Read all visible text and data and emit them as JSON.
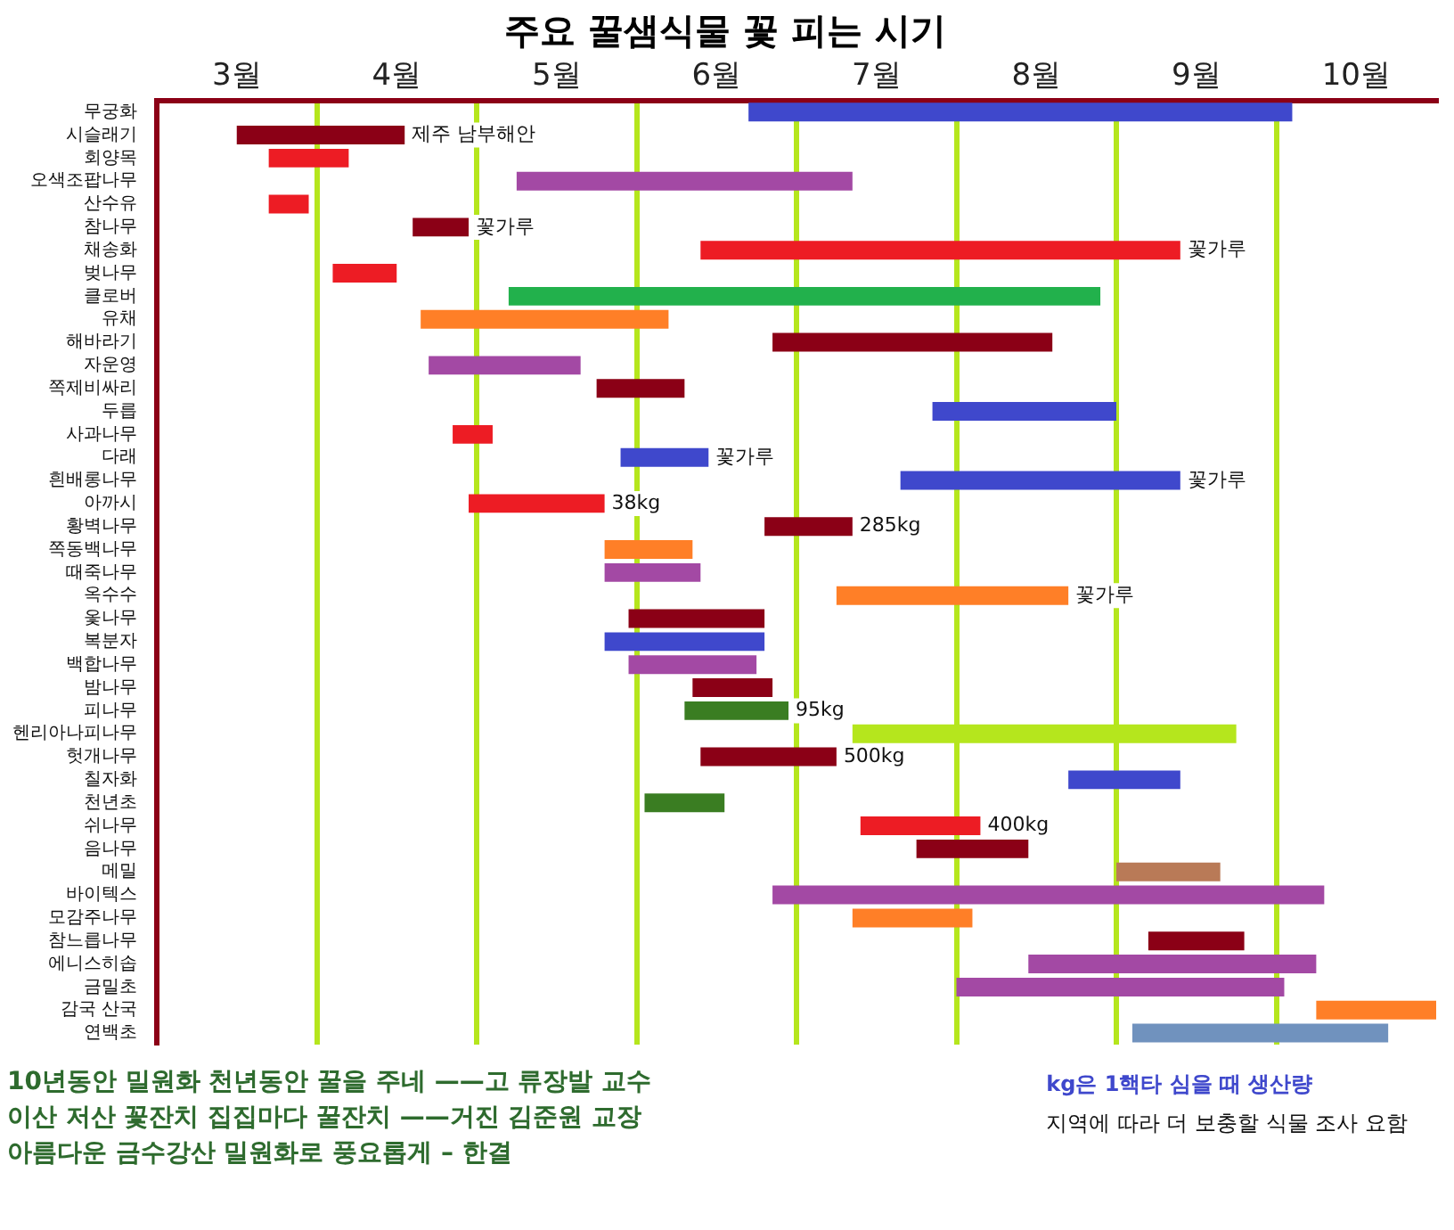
{
  "chart_data": {
    "type": "bar",
    "orientation": "horizontal",
    "title": "주요 꿀샘식물 꽃 피는 시기",
    "categories": [
      "무궁화",
      "시슬래기",
      "회양목",
      "오색조팝나무",
      "산수유",
      "참나무",
      "채송화",
      "벚나무",
      "클로버",
      "유채",
      "해바라기",
      "자운영",
      "쪽제비싸리",
      "두릅",
      "사과나무",
      "다래",
      "흰배롱나무",
      "아까시",
      "황벽나무",
      "쪽동백나무",
      "때죽나무",
      "옥수수",
      "옻나무",
      "복분자",
      "백합나무",
      "밤나무",
      "피나무",
      "헨리아나피나무",
      "헛개나무",
      "칠자화",
      "천년초",
      "쉬나무",
      "음나무",
      "메밀",
      "바이텍스",
      "모감주나무",
      "참느릅나무",
      "에니스히솝",
      "금밀초",
      "감국 산국",
      "연백초"
    ],
    "base": [
      6.7,
      3.5,
      3.7,
      5.25,
      3.7,
      4.6,
      6.4,
      4.1,
      5.2,
      4.65,
      6.85,
      4.7,
      5.75,
      7.85,
      4.85,
      5.9,
      7.65,
      4.95,
      6.8,
      5.8,
      5.8,
      7.25,
      5.95,
      5.8,
      5.95,
      6.35,
      6.3,
      7.35,
      6.4,
      8.7,
      6.05,
      7.4,
      7.75,
      9.0,
      6.85,
      7.35,
      9.2,
      8.45,
      8.0,
      10.25,
      9.1
    ],
    "values": [
      3.4,
      1.05,
      0.5,
      2.1,
      0.25,
      0.35,
      3.0,
      0.4,
      3.7,
      1.55,
      1.75,
      0.95,
      0.55,
      1.15,
      0.25,
      0.55,
      1.75,
      0.85,
      0.55,
      0.55,
      0.6,
      1.45,
      0.85,
      1.0,
      0.8,
      0.5,
      0.65,
      2.4,
      0.85,
      0.7,
      0.5,
      0.75,
      0.7,
      0.65,
      3.45,
      0.75,
      0.6,
      1.8,
      2.05,
      0.75,
      1.6
    ],
    "colors": [
      "#3f48cc",
      "#8b0016",
      "#ed1c24",
      "#a349a4",
      "#ed1c24",
      "#8b0016",
      "#ed1c24",
      "#ed1c24",
      "#22b14c",
      "#ff7f27",
      "#8b0016",
      "#a349a4",
      "#8b0016",
      "#3f48cc",
      "#ed1c24",
      "#3f48cc",
      "#3f48cc",
      "#ed1c24",
      "#8b0016",
      "#ff7f27",
      "#a349a4",
      "#ff7f27",
      "#8b0016",
      "#3f48cc",
      "#a349a4",
      "#8b0016",
      "#3a7d22",
      "#b5e61d",
      "#8b0016",
      "#3f48cc",
      "#3a7d22",
      "#ed1c24",
      "#8b0016",
      "#b97a57",
      "#a349a4",
      "#ff7f27",
      "#8b0016",
      "#a349a4",
      "#a349a4",
      "#ff7f27",
      "#7092be"
    ],
    "xlim": [
      3,
      11
    ],
    "xticks": [
      {
        "value": 3.5,
        "label": "3월"
      },
      {
        "value": 4,
        "label": null
      },
      {
        "value": 4.5,
        "label": "4월"
      },
      {
        "value": 5,
        "label": null
      },
      {
        "value": 5.5,
        "label": "5월"
      },
      {
        "value": 6,
        "label": null
      },
      {
        "value": 6.5,
        "label": "6월"
      },
      {
        "value": 7,
        "label": null
      },
      {
        "value": 7.5,
        "label": "7월"
      },
      {
        "value": 8,
        "label": null
      },
      {
        "value": 8.5,
        "label": "8월"
      },
      {
        "value": 9,
        "label": null
      },
      {
        "value": 9.5,
        "label": "9월"
      },
      {
        "value": 10,
        "label": null
      },
      {
        "value": 10.5,
        "label": "10월"
      }
    ],
    "grid": "x",
    "legend": false,
    "annotations": [
      {
        "text": "제주 남부해안",
        "x": 4.55,
        "y": "시슬래기"
      },
      {
        "text": "꽃가루",
        "x": 4.95,
        "y": "참나무"
      },
      {
        "text": "꽃가루",
        "x": 9.4,
        "y": "채송화"
      },
      {
        "text": "꽃가루",
        "x": 6.45,
        "y": "다래"
      },
      {
        "text": "꽃가루",
        "x": 9.4,
        "y": "흰배롱나무"
      },
      {
        "text": "38kg",
        "x": 5.8,
        "y": "아까시"
      },
      {
        "text": "285kg",
        "x": 7.35,
        "y": "황벽나무"
      },
      {
        "text": "꽃가루",
        "x": 8.7,
        "y": "옥수수"
      },
      {
        "text": "95kg",
        "x": 6.95,
        "y": "피나무"
      },
      {
        "text": "500kg",
        "x": 7.25,
        "y": "헛개나무"
      },
      {
        "text": "400kg",
        "x": 8.15,
        "y": "쉬나무"
      },
      "10년동안 밀원화 천년동안 꿀을 주네 ——고 류장발 교수",
      "이산 저산 꽃잔치 집집마다 꿀잔치 ——거진 김준원 교장",
      "아름다운 금수강산 밀원화로 풍요롭게 – 한결",
      "kg은 1핵타 심을 때  생산량",
      "지역에 따라 더 보충할 식물 조사 요함"
    ]
  }
}
